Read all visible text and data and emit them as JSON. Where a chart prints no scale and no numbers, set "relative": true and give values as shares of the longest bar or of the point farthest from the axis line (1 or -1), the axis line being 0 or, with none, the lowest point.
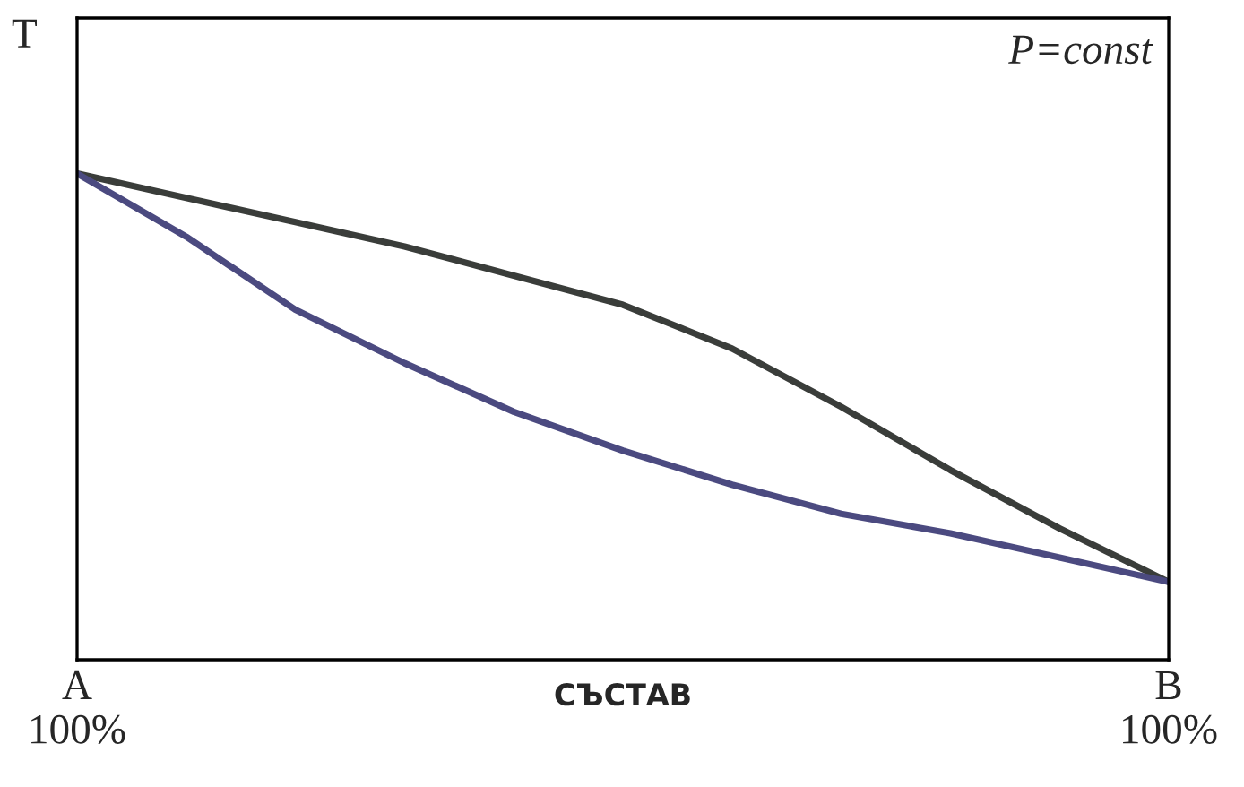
{
  "chart_data": {
    "type": "line",
    "relative": true,
    "ylabel": "T",
    "xlabel": "СЪСТАВ",
    "annotations": [
      "P=const"
    ],
    "categories": [
      "A\n100%",
      null,
      null,
      null,
      null,
      null,
      null,
      null,
      null,
      null,
      "B\n100%"
    ],
    "marker": "none",
    "line_style": "solid",
    "series": [
      {
        "color": "#3a3d3a",
        "values": [
          1.0,
          0.95,
          0.9,
          0.85,
          0.79,
          0.73,
          0.64,
          0.52,
          0.39,
          0.27,
          0.16
        ]
      },
      {
        "color": "#4b4a80",
        "values": [
          1.0,
          0.87,
          0.72,
          0.61,
          0.51,
          0.43,
          0.36,
          0.3,
          0.26,
          0.21,
          0.16
        ]
      }
    ]
  }
}
